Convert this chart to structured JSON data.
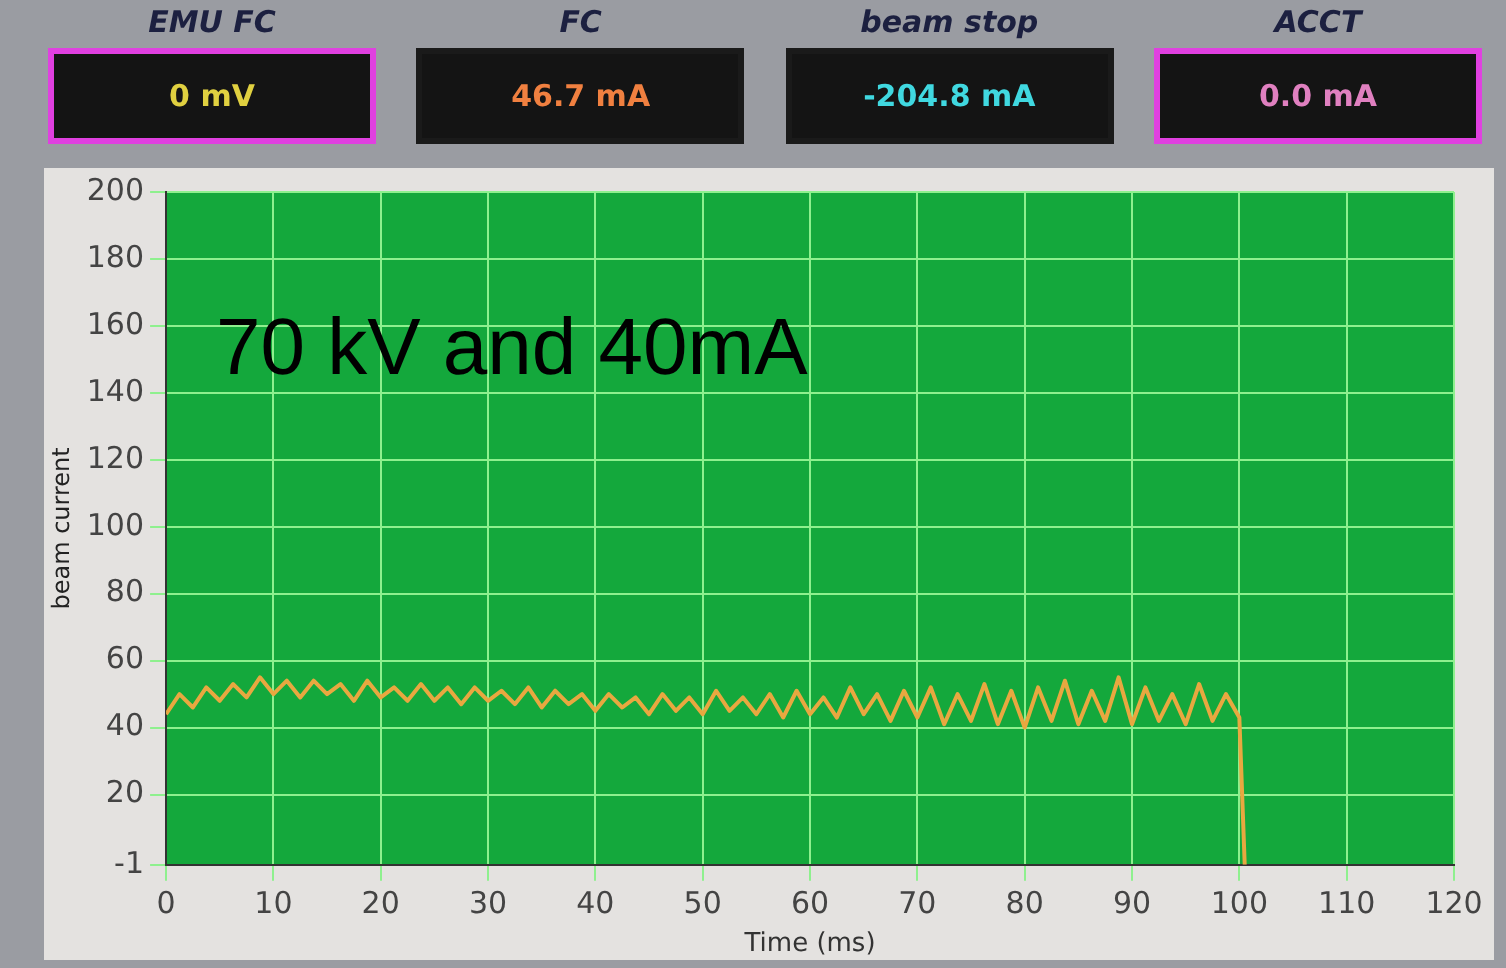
{
  "chart_data": {
    "type": "line",
    "xlabel": "Time (ms)",
    "ylabel": "beam current",
    "annotations": [
      "EMU FC",
      "0 mV",
      "FC",
      "46.7 mA",
      "beam stop",
      "-204.8 mA",
      "ACCT",
      "0.0 mA",
      "70 kV and 40mA"
    ],
    "x": [
      0,
      1.25,
      2.5,
      3.75,
      5,
      6.25,
      7.5,
      8.75,
      10,
      11.25,
      12.5,
      13.75,
      15,
      16.25,
      17.5,
      18.75,
      20,
      21.25,
      22.5,
      23.75,
      25,
      26.25,
      27.5,
      28.75,
      30,
      31.25,
      32.5,
      33.75,
      35,
      36.25,
      37.5,
      38.75,
      40,
      41.25,
      42.5,
      43.75,
      45,
      46.25,
      47.5,
      48.75,
      50,
      51.25,
      52.5,
      53.75,
      55,
      56.25,
      57.5,
      58.75,
      60,
      61.25,
      62.5,
      63.75,
      65,
      66.25,
      67.5,
      68.75,
      70,
      71.25,
      72.5,
      73.75,
      75,
      76.25,
      77.5,
      78.75,
      80,
      81.25,
      82.5,
      83.75,
      85,
      86.25,
      87.5,
      88.75,
      90,
      91.25,
      92.5,
      93.75,
      95,
      96.25,
      97.5,
      98.75,
      100,
      100.5
    ],
    "series": [
      {
        "color": "#e8a840",
        "values": [
          44,
          50,
          46,
          52,
          48,
          53,
          49,
          55,
          50,
          54,
          49,
          54,
          50,
          53,
          48,
          54,
          49,
          52,
          48,
          53,
          48,
          52,
          47,
          52,
          48,
          51,
          47,
          52,
          46,
          51,
          47,
          50,
          45,
          50,
          46,
          49,
          44,
          50,
          45,
          49,
          44,
          51,
          45,
          49,
          44,
          50,
          43,
          51,
          44,
          49,
          43,
          52,
          44,
          50,
          42,
          51,
          43,
          52,
          41,
          50,
          42,
          53,
          41,
          51,
          40,
          52,
          42,
          54,
          41,
          51,
          42,
          55,
          41,
          52,
          42,
          50,
          41,
          53,
          42,
          50,
          43,
          -1
        ]
      }
    ],
    "xlim": [
      0,
      120
    ],
    "xticks": [
      0,
      10,
      20,
      30,
      40,
      50,
      60,
      70,
      80,
      90,
      100,
      110,
      120
    ],
    "ylim": [
      -1,
      200
    ],
    "yticks": [
      -1,
      20,
      40,
      60,
      80,
      100,
      120,
      140,
      160,
      180,
      200
    ],
    "grid": true,
    "legend": false,
    "marker": "none",
    "line_style": "solid"
  }
}
